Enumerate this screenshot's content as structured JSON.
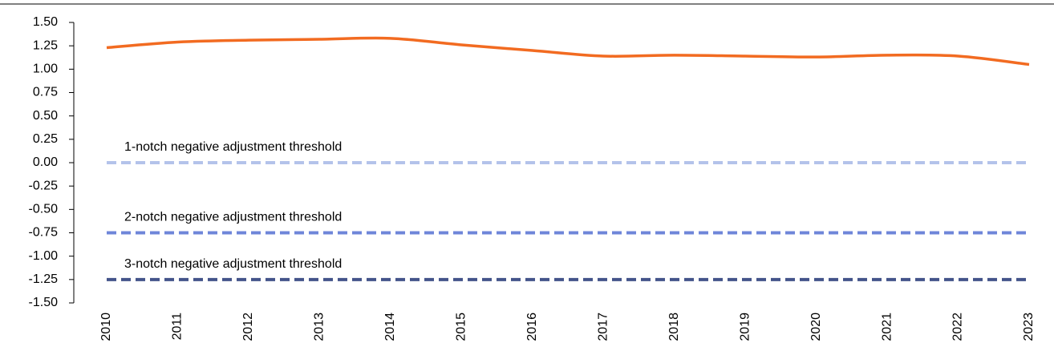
{
  "chart_data": {
    "type": "line",
    "categories": [
      "2010",
      "2011",
      "2012",
      "2013",
      "2014",
      "2015",
      "2016",
      "2017",
      "2018",
      "2019",
      "2020",
      "2021",
      "2022",
      "2023"
    ],
    "series": [
      {
        "color": "#f26b21",
        "values": [
          1.23,
          1.29,
          1.31,
          1.32,
          1.33,
          1.26,
          1.2,
          1.14,
          1.15,
          1.14,
          1.13,
          1.15,
          1.14,
          1.05
        ]
      },
      {
        "name": "1-notch negative adjustment threshold",
        "color": "#b4c3ea",
        "dashed": true,
        "values": [
          0,
          0,
          0,
          0,
          0,
          0,
          0,
          0,
          0,
          0,
          0,
          0,
          0,
          0
        ]
      },
      {
        "name": "2-notch negative adjustment threshold",
        "color": "#6f86d9",
        "dashed": true,
        "values": [
          -0.75,
          -0.75,
          -0.75,
          -0.75,
          -0.75,
          -0.75,
          -0.75,
          -0.75,
          -0.75,
          -0.75,
          -0.75,
          -0.75,
          -0.75,
          -0.75
        ]
      },
      {
        "name": "3-notch negative adjustment threshold",
        "color": "#44548a",
        "dashed": true,
        "values": [
          -1.25,
          -1.25,
          -1.25,
          -1.25,
          -1.25,
          -1.25,
          -1.25,
          -1.25,
          -1.25,
          -1.25,
          -1.25,
          -1.25,
          -1.25,
          -1.25
        ]
      }
    ],
    "ylim": [
      -1.5,
      1.5
    ],
    "yticks": [
      {
        "value": 1.5,
        "label": "1.50"
      },
      {
        "value": 1.25,
        "label": "1.25"
      },
      {
        "value": 1,
        "label": "1.00"
      },
      {
        "value": 0.75,
        "label": "0.75"
      },
      {
        "value": 0.5,
        "label": "0.50"
      },
      {
        "value": 0.25,
        "label": "0.25"
      },
      {
        "value": 0,
        "label": "0.00"
      },
      {
        "value": -0.25,
        "label": "-0.25"
      },
      {
        "value": -0.5,
        "label": "-0.50"
      },
      {
        "value": -0.75,
        "label": "-0.75"
      },
      {
        "value": -1,
        "label": "-1.00"
      },
      {
        "value": -1.25,
        "label": "-1.25"
      },
      {
        "value": -1.5,
        "label": "-1.50"
      }
    ]
  }
}
